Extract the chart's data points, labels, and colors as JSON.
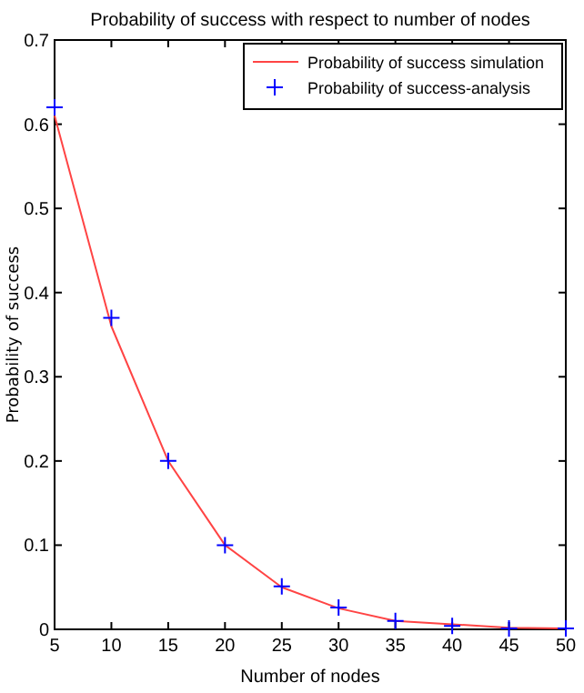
{
  "chart_data": {
    "type": "line",
    "title": "Probability of success with respect to number of nodes",
    "xlabel": "Number of nodes",
    "ylabel": "Probability of success",
    "x": [
      5,
      10,
      15,
      20,
      25,
      30,
      35,
      40,
      45,
      50
    ],
    "series": [
      {
        "name": "Probability of success simulation",
        "color": "#ff4444",
        "marker": "none",
        "values": [
          0.61,
          0.36,
          0.2,
          0.1,
          0.05,
          0.025,
          0.01,
          0.006,
          0.002,
          0.001
        ]
      },
      {
        "name": "Probability of success-analysis",
        "type": "scatter",
        "color": "#0000ff",
        "marker": "cross",
        "values": [
          0.62,
          0.37,
          0.2,
          0.1,
          0.051,
          0.026,
          0.01,
          0.004,
          0.001,
          0.001
        ]
      }
    ],
    "xlim": [
      5,
      50
    ],
    "xticks": [
      5,
      10,
      15,
      20,
      25,
      30,
      35,
      40,
      45,
      50
    ],
    "ylim": [
      0,
      0.7
    ],
    "yticks": [
      0,
      0.1,
      0.2,
      0.3,
      0.4,
      0.5,
      0.6,
      0.7
    ],
    "grid": false,
    "legend": "top right"
  }
}
